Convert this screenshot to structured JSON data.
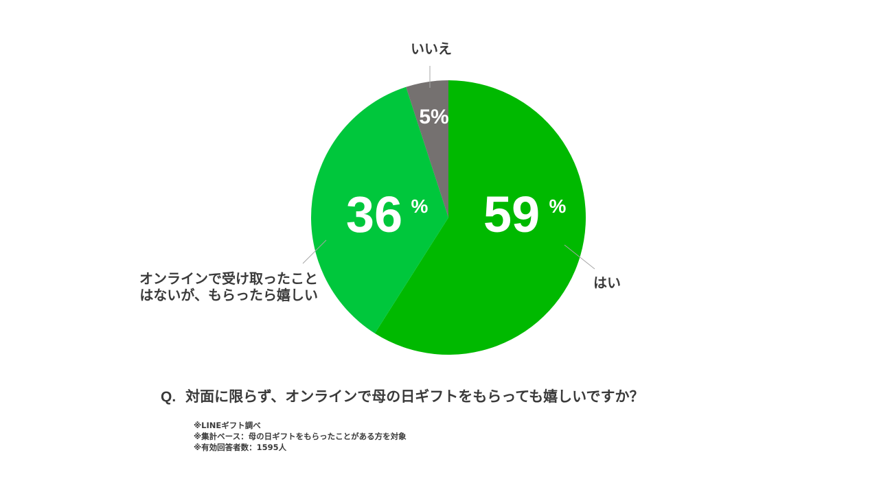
{
  "chart_data": {
    "type": "pie",
    "categories": [
      "はい",
      "オンラインで受け取ったことはないが、もらったら嬉しい",
      "いいえ"
    ],
    "category_lines": [
      [
        "はい"
      ],
      [
        "オンラインで受け取ったこと",
        "はないが、もらったら嬉しい"
      ],
      [
        "いいえ"
      ]
    ],
    "values": [
      59,
      36,
      5
    ],
    "unit": "%",
    "value_labels": [
      "59",
      "36",
      "5"
    ],
    "colors": [
      "#00b900",
      "#00c73c",
      "#757170"
    ],
    "legend": "none",
    "start_angle": "12 o'clock, clockwise"
  },
  "question": {
    "prefix": "Q.",
    "text": "対面に限らず、オンラインで母の日ギフトをもらっても嬉しいですか？"
  },
  "notes": [
    "※LINEギフト調べ",
    "※集計ベース：母の日ギフトをもらったことがある方を対象",
    "※有効回答者数：1595人"
  ]
}
